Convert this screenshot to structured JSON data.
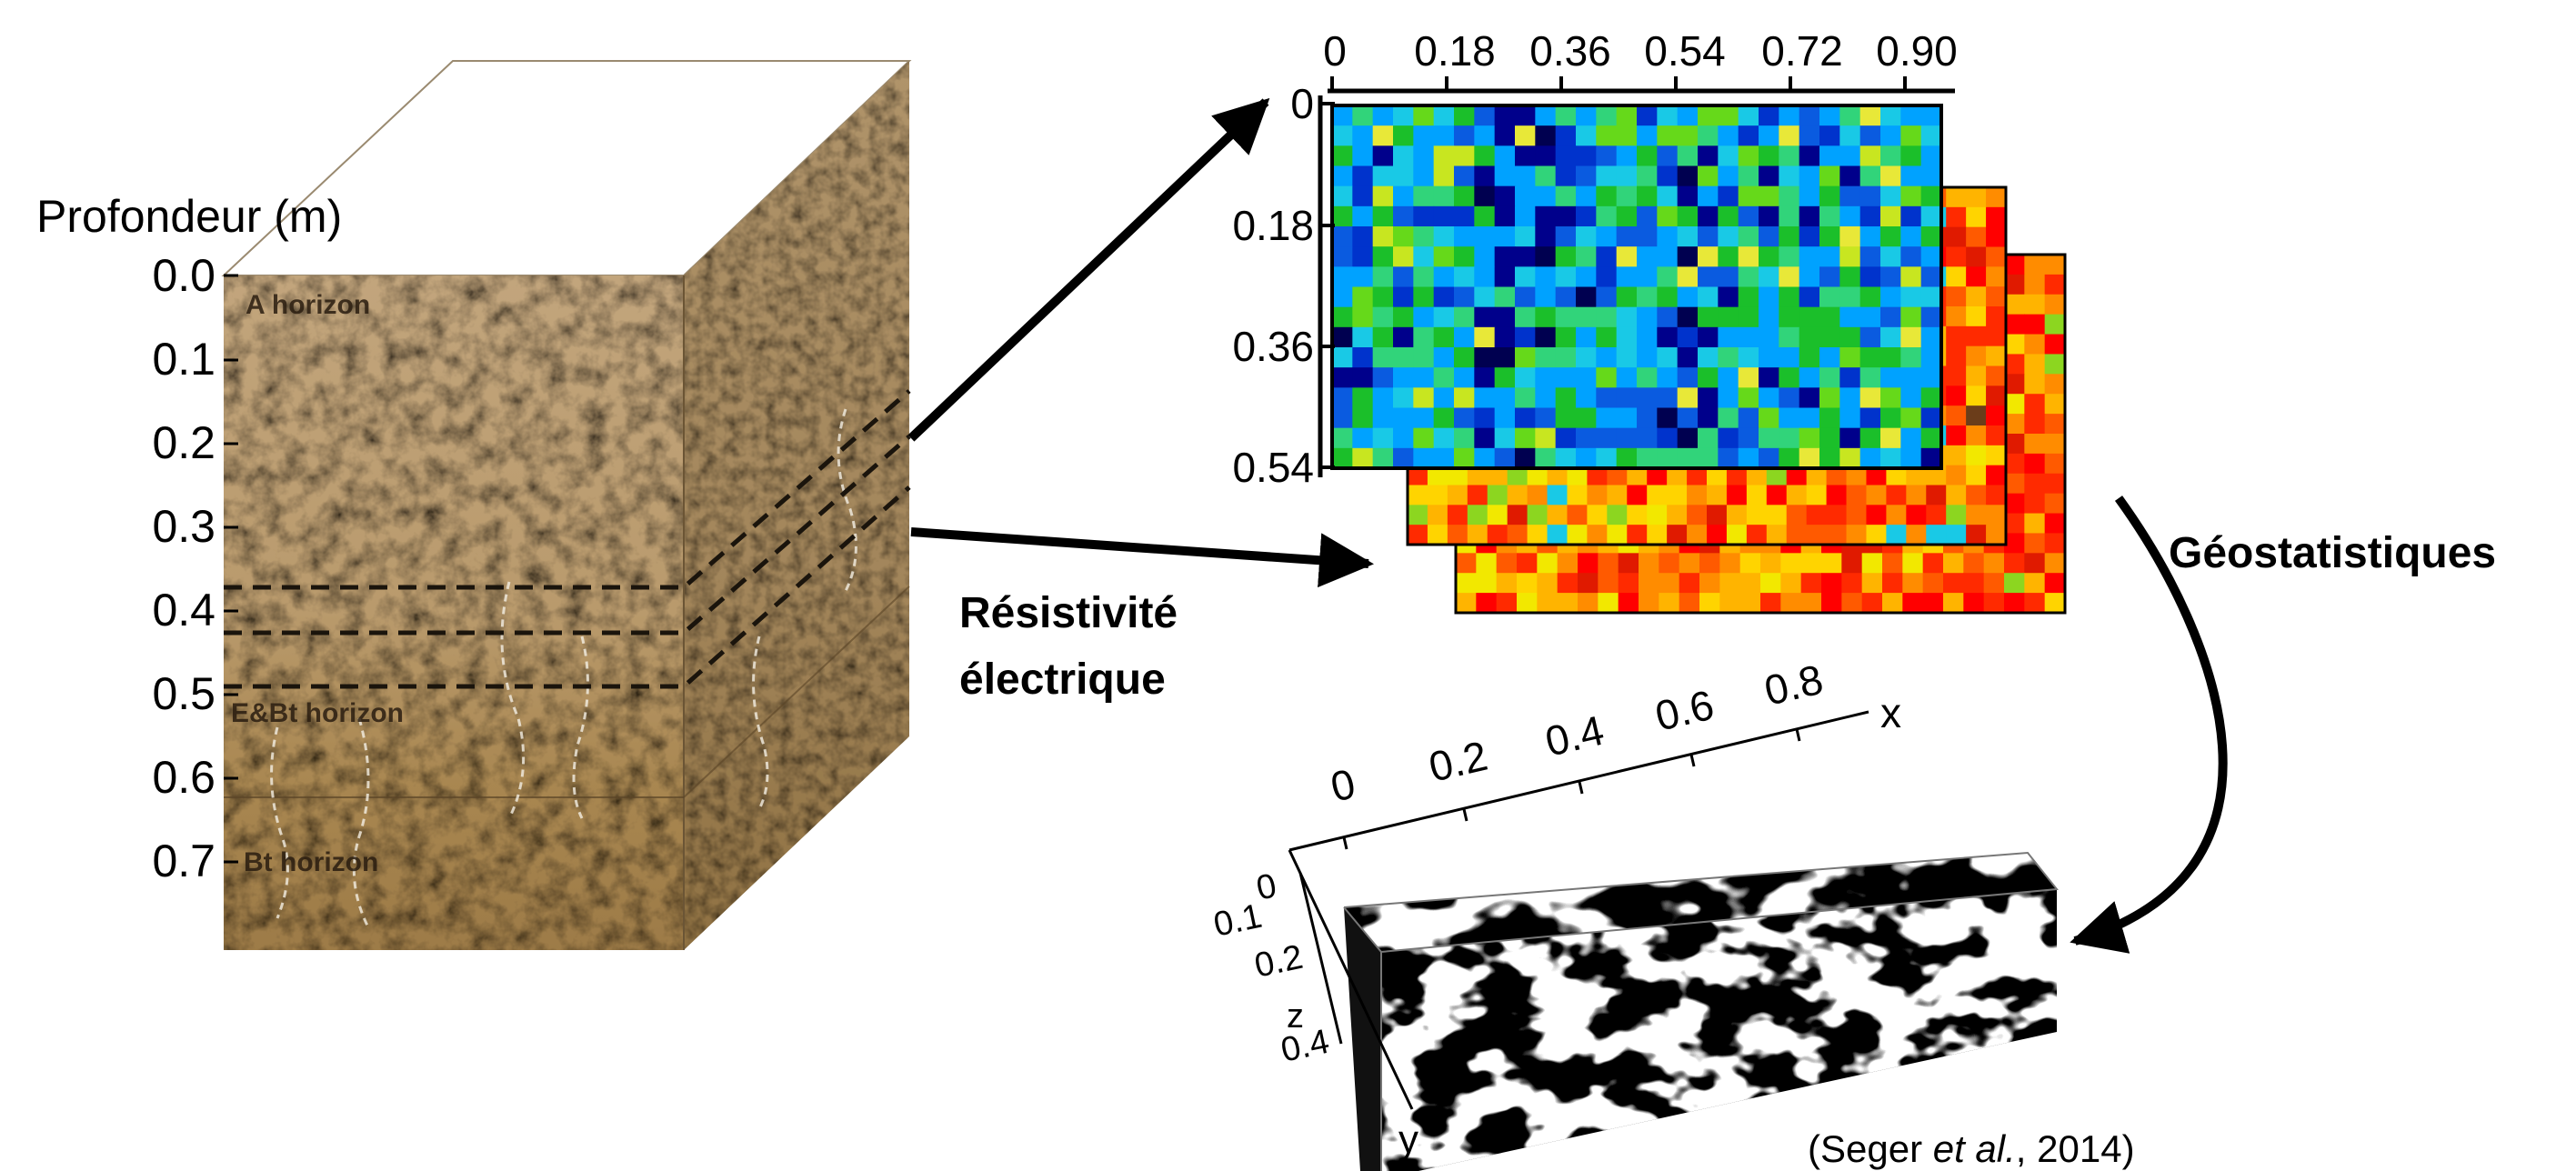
{
  "soil_block": {
    "depth_title": "Profondeur (m)",
    "depth_ticks": [
      "0.0",
      "0.1",
      "0.2",
      "0.3",
      "0.4",
      "0.5",
      "0.6",
      "0.7"
    ],
    "horizons": [
      "A horizon",
      "E&Bt horizon",
      "Bt horizon"
    ]
  },
  "arrow_label": {
    "line1": "Résistivité",
    "line2": "électrique"
  },
  "resistivity_maps": {
    "x_ticks": [
      "0",
      "0.18",
      "0.36",
      "0.54",
      "0.72",
      "0.90"
    ],
    "y_ticks": [
      "0",
      "0.18",
      "0.36",
      "0.54"
    ],
    "colors": {
      "front": [
        "#00008b",
        "#0033cc",
        "#0a5be0",
        "#00a2ff",
        "#19c9e6",
        "#31d47a",
        "#1bbf2a",
        "#66d91a",
        "#c8e620",
        "#e8e838",
        "#000050"
      ],
      "back": [
        "#ff2a00",
        "#ff5a00",
        "#ff8c00",
        "#ffb400",
        "#ffd400",
        "#f2e800",
        "#ff0000",
        "#e01a00",
        "#8cd620"
      ]
    }
  },
  "geostat_label": "Géostatistiques",
  "model_3d": {
    "x_label": "x",
    "y_label": "y",
    "z_label": "z",
    "x_ticks": [
      "0",
      "0.2",
      "0.4",
      "0.6",
      "0.8"
    ],
    "z_ticks": [
      "0",
      "0.1",
      "0.2",
      "0.4"
    ]
  },
  "citation": {
    "pre": "(Seger ",
    "italic": "et al.",
    "post": ", 2014)"
  }
}
